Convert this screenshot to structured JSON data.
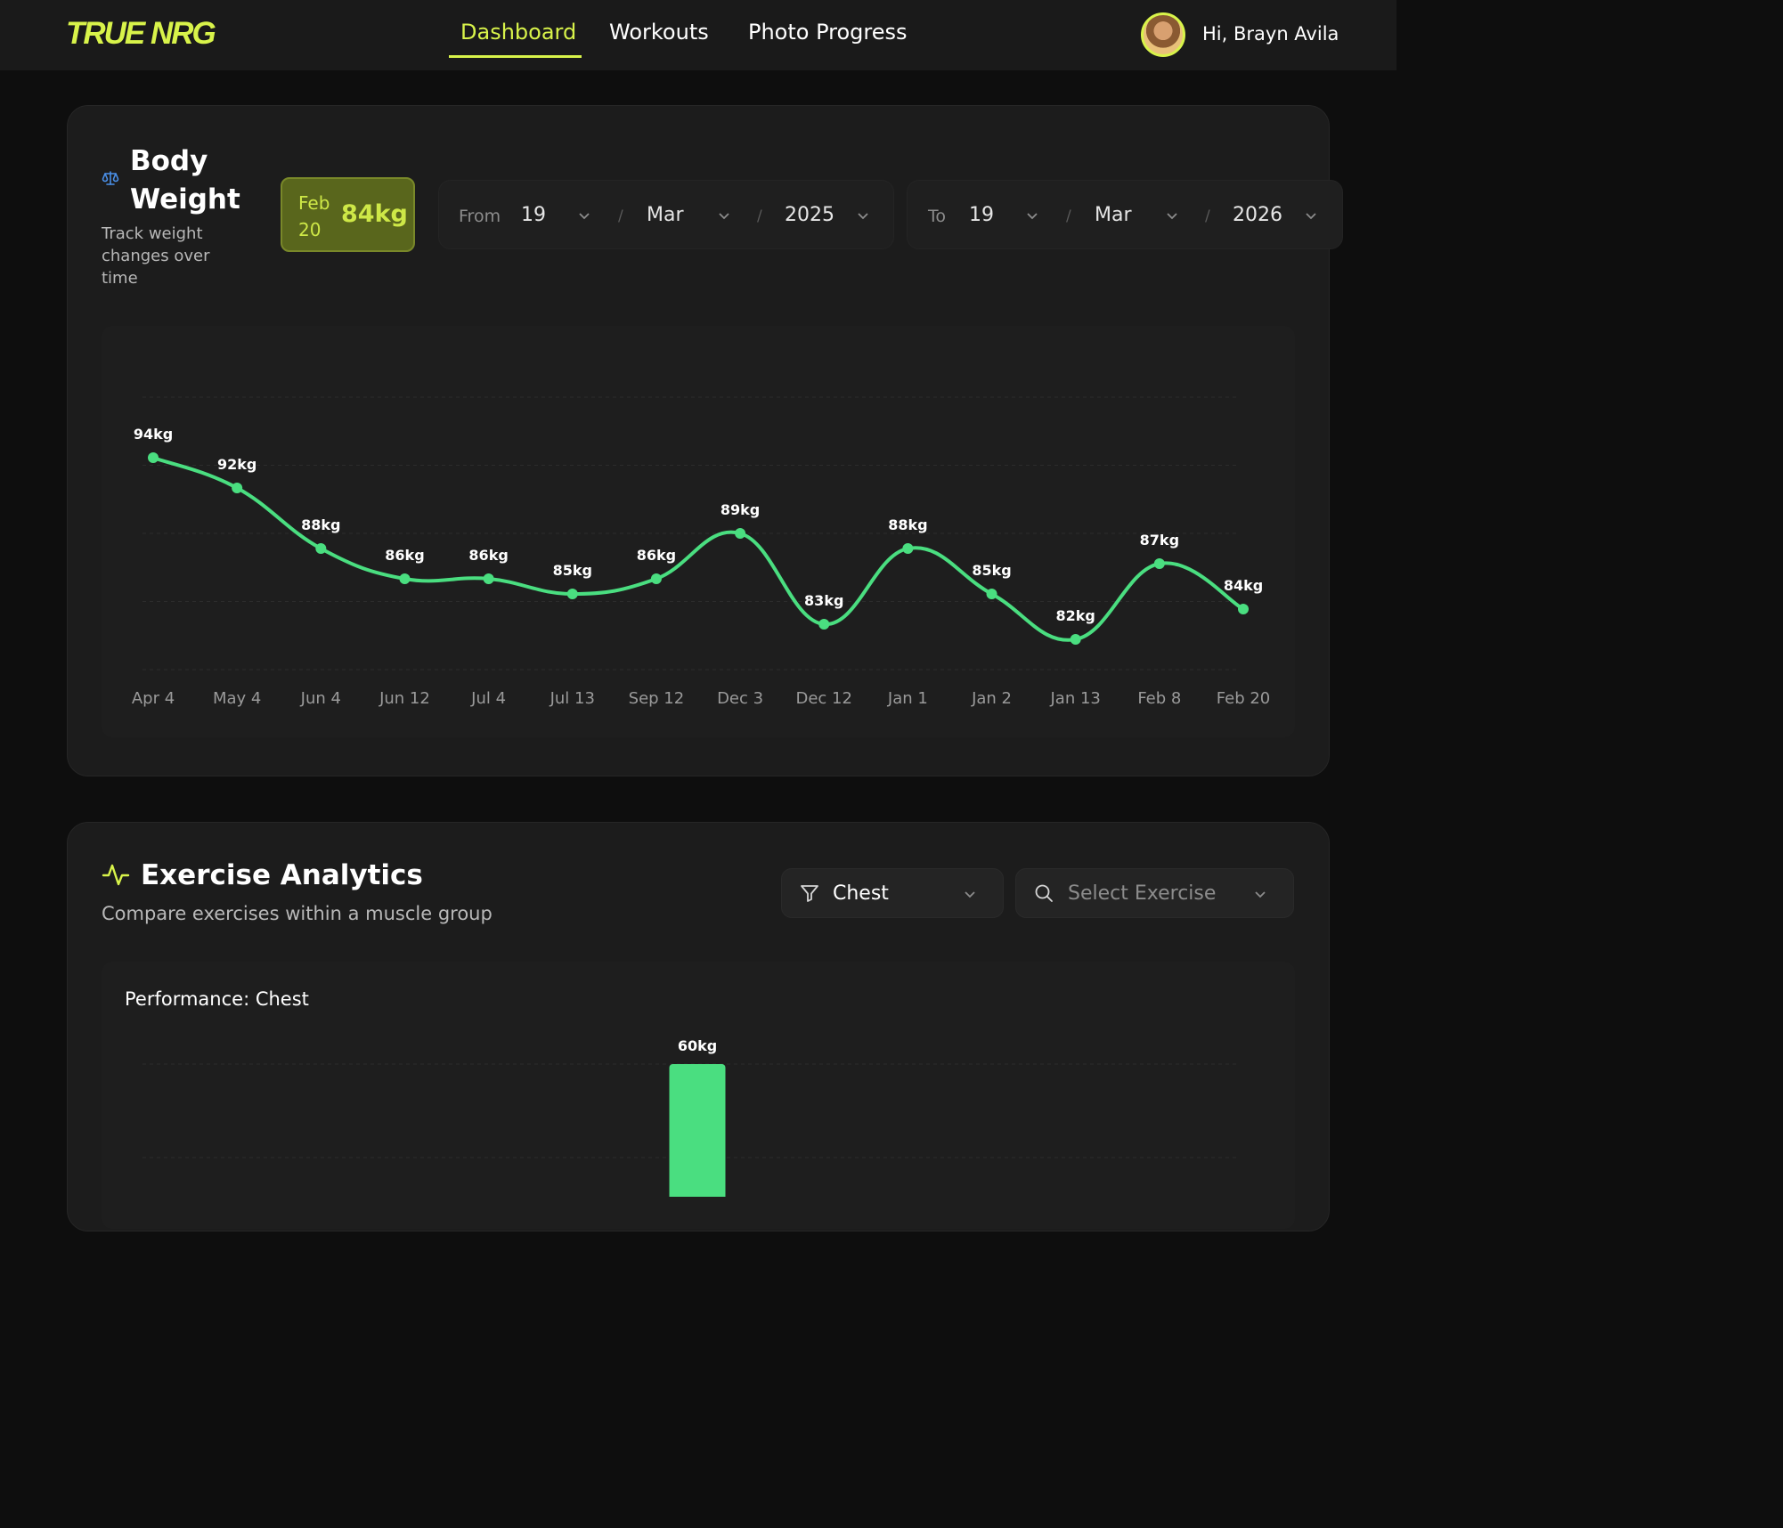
{
  "brand": {
    "logo": "TRUE NRG",
    "accent_color": "#d8f34a",
    "line_color": "#4ade80"
  },
  "nav": {
    "items": [
      {
        "label": "Dashboard",
        "active": true
      },
      {
        "label": "Workouts",
        "active": false
      },
      {
        "label": "Photo Progress",
        "active": false
      }
    ]
  },
  "user": {
    "greeting": "Hi, Brayn Avila"
  },
  "body_weight": {
    "icon": "scale-icon",
    "title": "Body Weight",
    "subtitle": "Track weight changes over time",
    "latest": {
      "date": "Feb 20",
      "value": "84kg"
    },
    "from": {
      "label": "From",
      "day": "19",
      "month": "Mar",
      "year": "2025",
      "separator": "/"
    },
    "to": {
      "label": "To",
      "day": "19",
      "month": "Mar",
      "year": "2026",
      "separator": "/"
    }
  },
  "exercise_analytics": {
    "icon": "activity-icon",
    "title": "Exercise Analytics",
    "subtitle": "Compare exercises within a muscle group",
    "muscle_filter": {
      "icon": "filter-icon",
      "value": "Chest"
    },
    "exercise_select": {
      "icon": "search-icon",
      "placeholder": "Select Exercise"
    },
    "performance_title": "Performance: Chest"
  },
  "chart_data": [
    {
      "type": "line",
      "title": "",
      "xlabel": "",
      "ylabel": "",
      "categories": [
        "Apr 4",
        "May 4",
        "Jun 4",
        "Jun 12",
        "Jul 4",
        "Jul 13",
        "Sep 12",
        "Dec 3",
        "Dec 12",
        "Jan 1",
        "Jan 2",
        "Jan 13",
        "Feb 8",
        "Feb 20"
      ],
      "values": [
        94,
        92,
        88,
        86,
        86,
        85,
        86,
        89,
        83,
        88,
        85,
        82,
        87,
        84
      ],
      "labels": [
        "94kg",
        "92kg",
        "88kg",
        "86kg",
        "86kg",
        "85kg",
        "86kg",
        "89kg",
        "83kg",
        "88kg",
        "85kg",
        "82kg",
        "87kg",
        "84kg"
      ],
      "unit": "kg",
      "ylim": [
        80,
        98
      ],
      "grid": true,
      "smooth": true
    },
    {
      "type": "bar",
      "title": "Performance: Chest",
      "values": [
        60
      ],
      "labels": [
        "60kg"
      ],
      "unit": "kg",
      "ylim": [
        0,
        60
      ]
    }
  ]
}
